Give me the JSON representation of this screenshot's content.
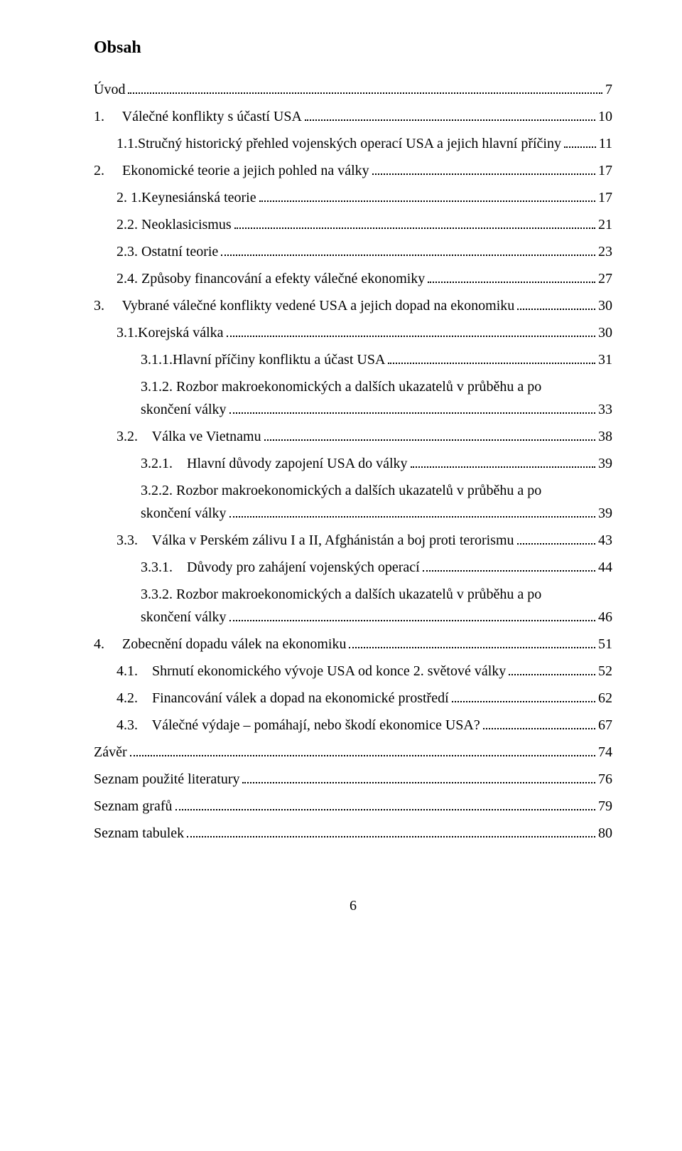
{
  "title": "Obsah",
  "pageNumber": "6",
  "entries": [
    {
      "indent": 0,
      "label": "Úvod",
      "page": "7"
    },
    {
      "indent": 0,
      "label": "1.     Válečné konflikty s účastí USA",
      "page": "10"
    },
    {
      "indent": 1,
      "label": "1.1.Stručný historický přehled vojenských operací USA a jejich hlavní příčiny",
      "page": "11"
    },
    {
      "indent": 0,
      "label": "2.     Ekonomické teorie a jejich pohled na války",
      "page": "17"
    },
    {
      "indent": 1,
      "label": "2. 1.Keynesiánská teorie",
      "page": "17"
    },
    {
      "indent": 1,
      "label": "2.2. Neoklasicismus",
      "page": "21"
    },
    {
      "indent": 1,
      "label": "2.3. Ostatní teorie",
      "page": "23"
    },
    {
      "indent": 1,
      "label": "2.4. Způsoby financování a efekty válečné ekonomiky",
      "page": "27"
    },
    {
      "indent": 0,
      "label": "3.     Vybrané válečné konflikty vedené USA a jejich dopad na ekonomiku",
      "page": "30"
    },
    {
      "indent": 1,
      "label": "3.1.Korejská válka",
      "page": "30"
    },
    {
      "indent": 2,
      "label": "3.1.1.Hlavní příčiny konfliktu a účast USA",
      "page": "31"
    },
    {
      "indent": 2,
      "wrap": true,
      "label1": "3.1.2.    Rozbor makroekonomických a dalších ukazatelů v průběhu a po",
      "label2": "skončení války",
      "page": "33"
    },
    {
      "indent": 1,
      "label": "3.2.    Válka ve Vietnamu",
      "page": "38"
    },
    {
      "indent": 2,
      "label": "3.2.1.    Hlavní důvody zapojení USA do války",
      "page": "39"
    },
    {
      "indent": 2,
      "wrap": true,
      "label1": "3.2.2.    Rozbor makroekonomických a dalších ukazatelů v průběhu a po",
      "label2": "skončení války",
      "page": "39"
    },
    {
      "indent": 1,
      "label": "3.3.    Válka v Perském zálivu I a II, Afghánistán a boj proti terorismu",
      "page": "43"
    },
    {
      "indent": 2,
      "label": "3.3.1.    Důvody pro zahájení vojenských operací",
      "page": "44"
    },
    {
      "indent": 2,
      "wrap": true,
      "label1": "3.3.2.    Rozbor makroekonomických a dalších ukazatelů v průběhu a po",
      "label2": "skončení války",
      "page": "46"
    },
    {
      "indent": 0,
      "label": "4.     Zobecnění dopadu válek na ekonomiku",
      "page": "51"
    },
    {
      "indent": 1,
      "label": "4.1.    Shrnutí ekonomického vývoje USA od konce 2. světové války",
      "page": "52"
    },
    {
      "indent": 1,
      "label": "4.2.    Financování válek a dopad na ekonomické prostředí",
      "page": "62"
    },
    {
      "indent": 1,
      "label": "4.3.    Válečné výdaje – pomáhají, nebo škodí ekonomice USA?",
      "page": "67"
    },
    {
      "indent": 0,
      "label": "Závěr",
      "page": "74"
    },
    {
      "indent": 0,
      "label": "Seznam použité literatury",
      "page": "76"
    },
    {
      "indent": 0,
      "label": "Seznam grafů",
      "page": "79"
    },
    {
      "indent": 0,
      "label": "Seznam tabulek",
      "page": "80"
    }
  ]
}
